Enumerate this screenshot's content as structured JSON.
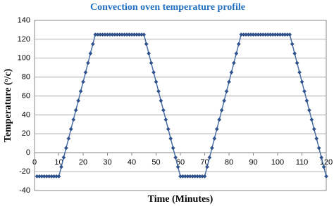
{
  "chart_data": {
    "type": "line",
    "title": "Convection oven temperature profile",
    "x_label": "Time (Minutes)",
    "y_label": "Temperature (ᵒ/c)",
    "x": [
      1,
      2,
      3,
      4,
      5,
      6,
      7,
      8,
      9,
      10,
      11,
      12,
      13,
      14,
      15,
      16,
      17,
      18,
      19,
      20,
      21,
      22,
      23,
      24,
      25,
      26,
      27,
      28,
      29,
      30,
      31,
      32,
      33,
      34,
      35,
      36,
      37,
      38,
      39,
      40,
      41,
      42,
      43,
      44,
      45,
      46,
      47,
      48,
      49,
      50,
      51,
      52,
      53,
      54,
      55,
      56,
      57,
      58,
      59,
      60,
      61,
      62,
      63,
      64,
      65,
      66,
      67,
      68,
      69,
      70,
      71,
      72,
      73,
      74,
      75,
      76,
      77,
      78,
      79,
      80,
      81,
      82,
      83,
      84,
      85,
      86,
      87,
      88,
      89,
      90,
      91,
      92,
      93,
      94,
      95,
      96,
      97,
      98,
      99,
      100,
      101,
      102,
      103,
      104,
      105,
      106,
      107,
      108,
      109,
      110,
      111,
      112,
      113,
      114,
      115,
      116,
      117,
      118,
      119,
      120
    ],
    "values": [
      -25,
      -25,
      -25,
      -25,
      -25,
      -25,
      -25,
      -25,
      -25,
      -25,
      -15,
      -5,
      5,
      15,
      25,
      35,
      45,
      55,
      65,
      75,
      85,
      95,
      105,
      115,
      125,
      125,
      125,
      125,
      125,
      125,
      125,
      125,
      125,
      125,
      125,
      125,
      125,
      125,
      125,
      125,
      125,
      125,
      125,
      125,
      125,
      115,
      105,
      95,
      85,
      75,
      65,
      55,
      45,
      35,
      25,
      15,
      5,
      -5,
      -15,
      -25,
      -25,
      -25,
      -25,
      -25,
      -25,
      -25,
      -25,
      -25,
      -25,
      -25,
      -15,
      -5,
      5,
      15,
      25,
      35,
      45,
      55,
      65,
      75,
      85,
      95,
      105,
      115,
      125,
      125,
      125,
      125,
      125,
      125,
      125,
      125,
      125,
      125,
      125,
      125,
      125,
      125,
      125,
      125,
      125,
      125,
      125,
      125,
      125,
      115,
      105,
      95,
      85,
      75,
      65,
      55,
      45,
      35,
      25,
      15,
      5,
      -5,
      -15,
      -25
    ],
    "color": "#4a6fa8",
    "marker_color": "#2f5597",
    "xlim": [
      0,
      120
    ],
    "xticks": [
      0,
      10,
      20,
      30,
      40,
      50,
      60,
      70,
      80,
      90,
      100,
      110,
      120
    ],
    "ylim": [
      -40,
      140
    ],
    "yticks": [
      -40,
      -20,
      0,
      20,
      40,
      60,
      80,
      100,
      120,
      140
    ],
    "grid": true
  }
}
